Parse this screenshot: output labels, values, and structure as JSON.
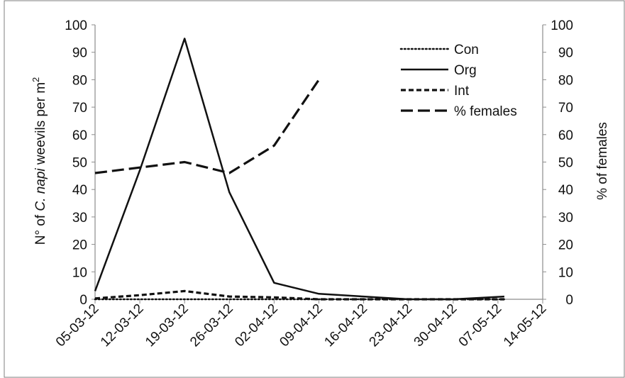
{
  "chart_data": {
    "type": "line",
    "y_axis_title": {
      "prefix": "N° of ",
      "italic_part": "C. napi",
      "suffix": " weevils per m",
      "superscript": "2"
    },
    "y2_axis_title": "% of females",
    "ylim": [
      0,
      100
    ],
    "y2lim": [
      0,
      100
    ],
    "yticks": [
      "0",
      "10",
      "20",
      "30",
      "40",
      "50",
      "60",
      "70",
      "80",
      "90",
      "100"
    ],
    "y2ticks": [
      "0",
      "10",
      "20",
      "30",
      "40",
      "50",
      "60",
      "70",
      "80",
      "90",
      "100"
    ],
    "xticks": [
      "05-03-12",
      "12-03-12",
      "19-03-12",
      "26-03-12",
      "02-04-12",
      "09-04-12",
      "16-04-12",
      "23-04-12",
      "30-04-12",
      "07-05-12",
      "14-05-12"
    ],
    "xlim": [
      "05-03-12",
      "14-05-12"
    ],
    "grid": false,
    "legend_position": "top-right",
    "series": [
      {
        "name": "Con",
        "style": "dotted",
        "axis": "left",
        "x": [
          "05-03-12",
          "19-03-12",
          "26-03-12",
          "09-04-12",
          "23-04-12",
          "08-05-12"
        ],
        "y": [
          0,
          0,
          0,
          0,
          0,
          0
        ]
      },
      {
        "name": "Org",
        "style": "solid",
        "axis": "left",
        "x": [
          "05-03-12",
          "12-03-12",
          "19-03-12",
          "26-03-12",
          "02-04-12",
          "09-04-12",
          "16-04-12",
          "23-04-12",
          "30-04-12",
          "08-05-12"
        ],
        "y": [
          3,
          47,
          95,
          39,
          6,
          2,
          1,
          0,
          0,
          1
        ]
      },
      {
        "name": "Int",
        "style": "dashed",
        "axis": "left",
        "x": [
          "05-03-12",
          "12-03-12",
          "19-03-12",
          "26-03-12",
          "02-04-12",
          "09-04-12",
          "16-04-12",
          "23-04-12",
          "30-04-12",
          "08-05-12"
        ],
        "y": [
          0.3,
          1.5,
          3,
          1,
          0.7,
          0,
          0,
          0,
          0,
          0
        ]
      },
      {
        "name": "% females",
        "style": "longdash",
        "axis": "right",
        "x": [
          "05-03-12",
          "12-03-12",
          "19-03-12",
          "26-03-12",
          "02-04-12",
          "09-04-12"
        ],
        "y": [
          46,
          48,
          50,
          46,
          56,
          80
        ]
      }
    ]
  }
}
